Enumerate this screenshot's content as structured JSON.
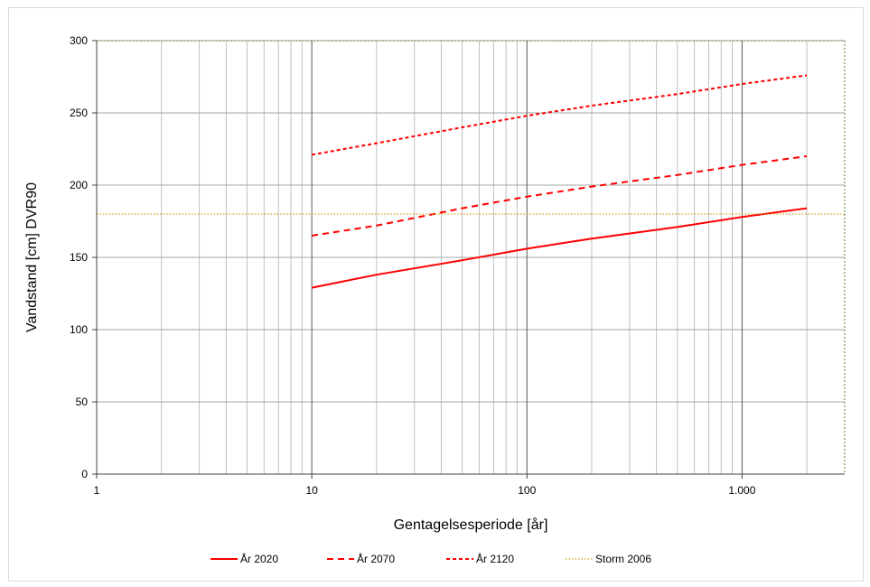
{
  "chart_data": {
    "type": "line",
    "title": "",
    "xlabel": "Gentagelsesperiode [år]",
    "ylabel": "Vandstand [cm] DVR90",
    "x_scale": "log",
    "xlim": [
      1,
      3000
    ],
    "ylim": [
      0,
      300
    ],
    "x_ticks": [
      1,
      10,
      100,
      1000
    ],
    "x_tick_labels": [
      "1",
      "10",
      "100",
      "1.000"
    ],
    "y_ticks": [
      0,
      50,
      100,
      150,
      200,
      250,
      300
    ],
    "y_tick_labels": [
      "0",
      "50",
      "100",
      "150",
      "200",
      "250",
      "300"
    ],
    "grid": true,
    "legend_position": "bottom",
    "series": [
      {
        "name": "År 2020",
        "style": "solid",
        "color": "#ff0000",
        "points": [
          [
            10,
            129
          ],
          [
            20,
            138
          ],
          [
            50,
            148
          ],
          [
            100,
            156
          ],
          [
            200,
            163
          ],
          [
            500,
            171
          ],
          [
            1000,
            178
          ],
          [
            2000,
            184
          ]
        ]
      },
      {
        "name": "År 2070",
        "style": "dashed",
        "color": "#ff0000",
        "points": [
          [
            10,
            165
          ],
          [
            20,
            172
          ],
          [
            50,
            184
          ],
          [
            100,
            192
          ],
          [
            200,
            199
          ],
          [
            500,
            207
          ],
          [
            1000,
            214
          ],
          [
            2000,
            220
          ]
        ]
      },
      {
        "name": "År 2120",
        "style": "short-dashed",
        "color": "#ff0000",
        "points": [
          [
            10,
            221
          ],
          [
            20,
            229
          ],
          [
            50,
            240
          ],
          [
            100,
            248
          ],
          [
            200,
            255
          ],
          [
            500,
            263
          ],
          [
            1000,
            270
          ],
          [
            2000,
            276
          ]
        ]
      },
      {
        "name": "Storm 2006",
        "style": "dotted",
        "color": "#d4a017",
        "points": [
          [
            1,
            180
          ],
          [
            3000,
            180
          ]
        ]
      }
    ]
  }
}
